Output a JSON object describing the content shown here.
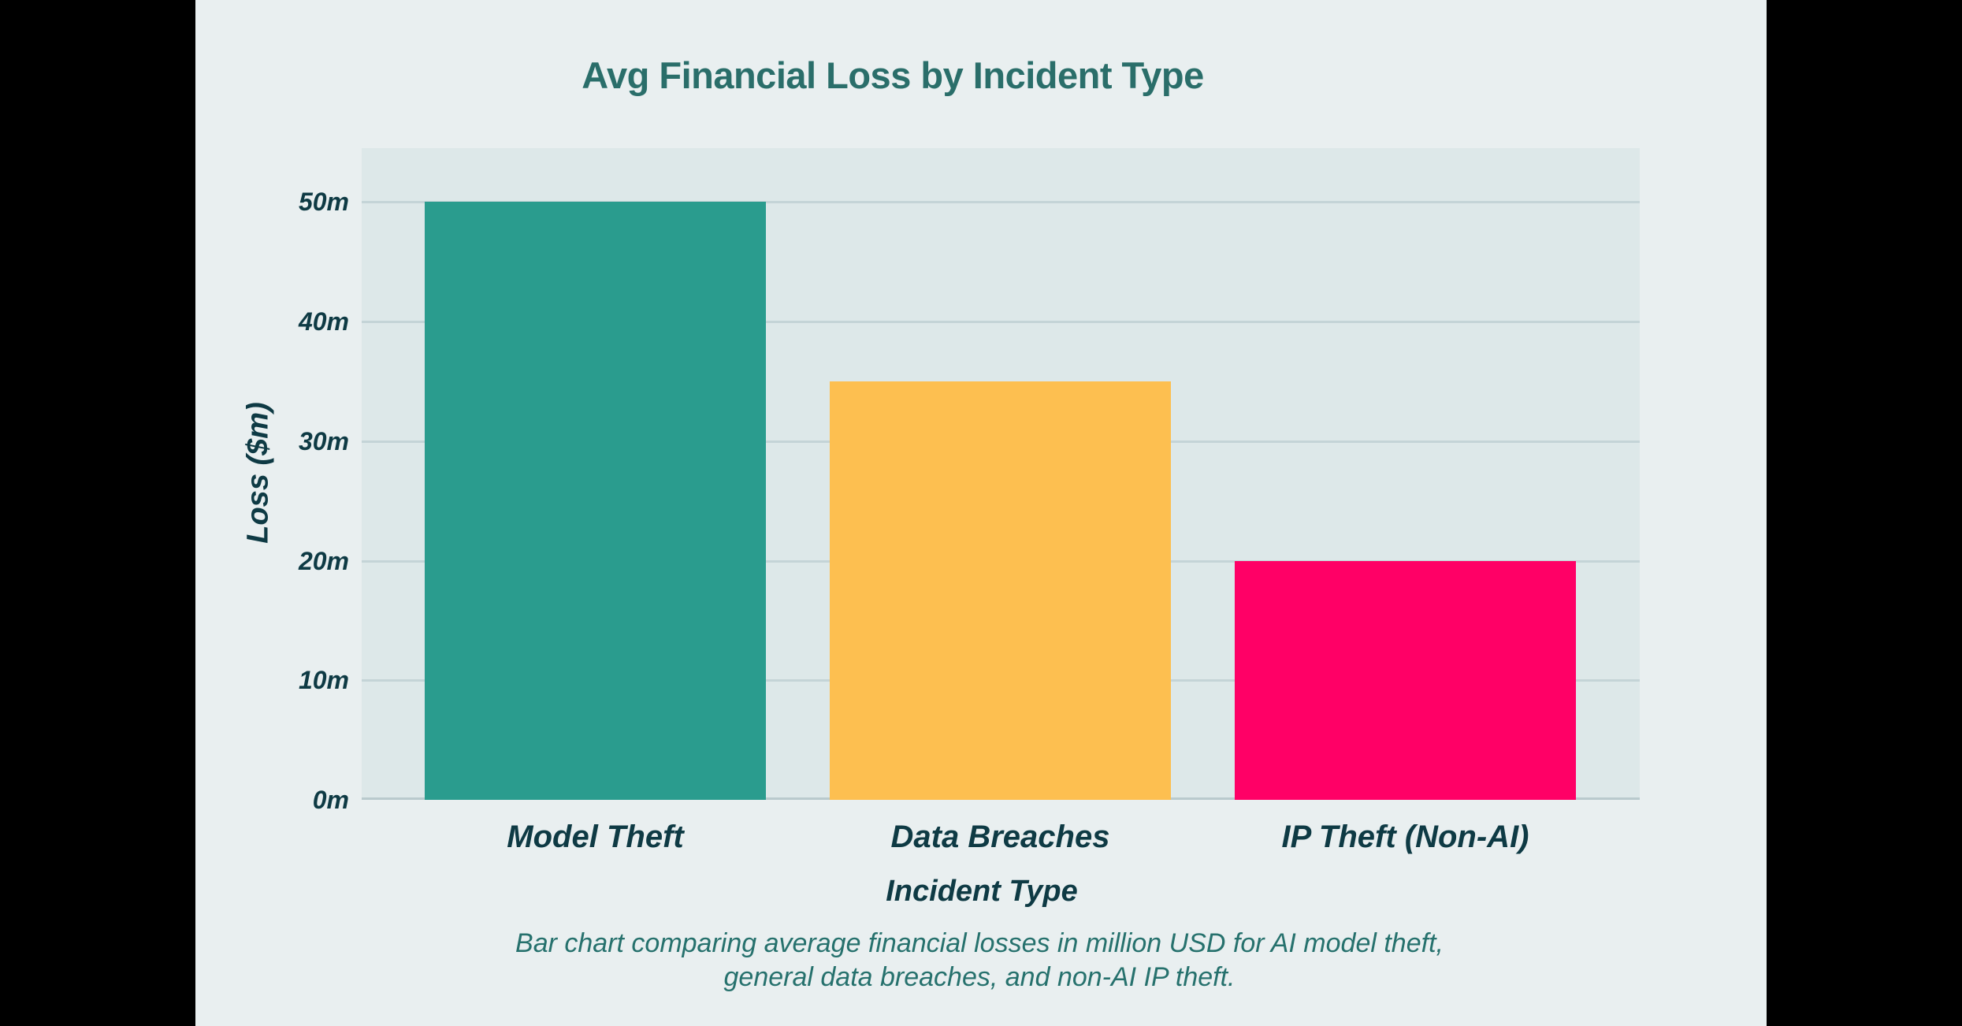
{
  "page": {
    "background": "#000000",
    "content_background": "#e9eff0"
  },
  "chart": {
    "plot_background": "#dde8e9",
    "gridline_color": "#c4d4d7",
    "baseline_color": "#b9cacd",
    "title_color": "#2a6e6a",
    "axis_text_color": "#0e3a44",
    "caption_color": "#26716d",
    "caption_line1": "Bar chart comparing average financial losses in million USD for AI model theft,",
    "caption_line2": "general data breaches, and non-AI IP theft."
  },
  "chart_data": {
    "type": "bar",
    "title": "Avg Financial Loss by Incident Type",
    "xlabel": "Incident Type",
    "ylabel": "Loss ($m)",
    "categories": [
      "Model Theft",
      "Data Breaches",
      "IP Theft (Non-AI)"
    ],
    "values": [
      50,
      35,
      20
    ],
    "unit": "million USD",
    "bar_colors": [
      "#2a9c8e",
      "#fdbf50",
      "#ff0066"
    ],
    "ylim": [
      0,
      54.5
    ],
    "yticks": [
      0,
      10,
      20,
      30,
      40,
      50
    ],
    "ytick_labels": [
      "0m",
      "10m",
      "20m",
      "30m",
      "40m",
      "50m"
    ],
    "grid": true,
    "legend": false,
    "caption": "Bar chart comparing average financial losses in million USD for AI model theft, general data breaches, and non-AI IP theft."
  }
}
